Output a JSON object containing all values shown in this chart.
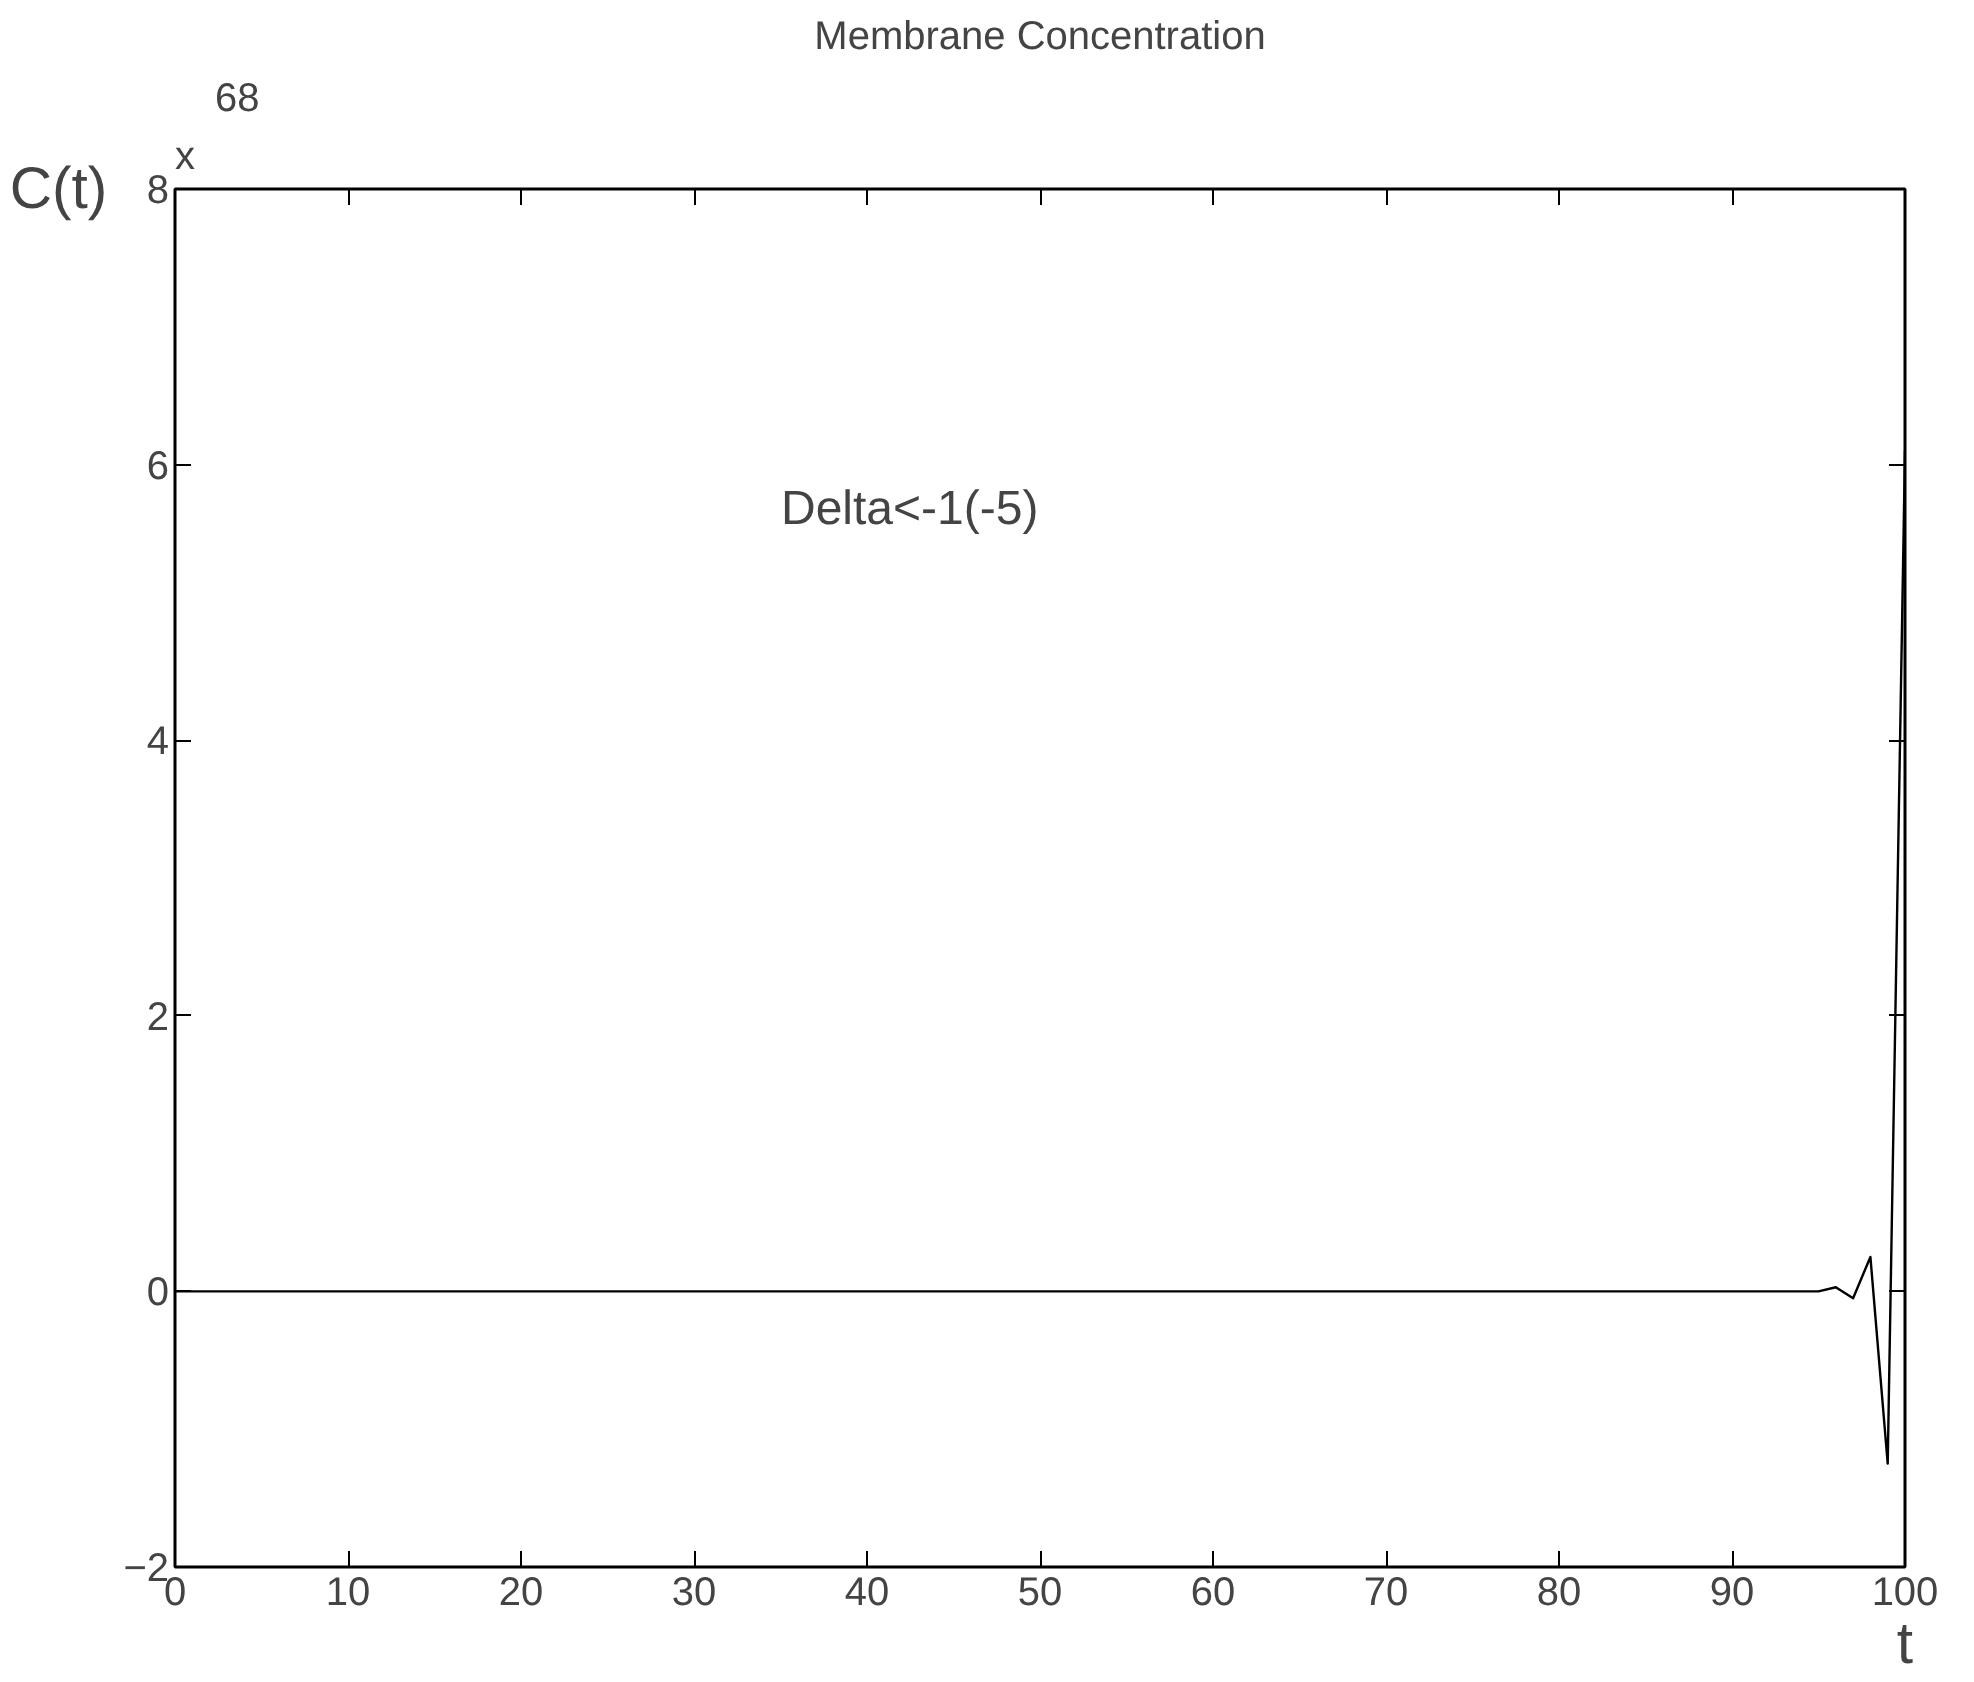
{
  "chart_data": {
    "type": "line",
    "title": "Membrane Concentration",
    "xlabel": "t",
    "ylabel": "C(t)",
    "x": [
      0,
      10,
      20,
      30,
      40,
      50,
      60,
      70,
      80,
      90,
      95,
      96,
      97,
      98,
      99,
      100
    ],
    "series": [
      {
        "color": "#000000",
        "values": [
          0,
          0,
          0,
          0,
          0,
          0,
          0,
          0,
          0,
          0,
          0,
          0.03,
          -0.05,
          0.25,
          -1.25,
          6.1
        ]
      }
    ],
    "xlim": [
      0,
      100
    ],
    "ylim": [
      -2,
      8
    ],
    "xticks": [
      0,
      10,
      20,
      30,
      40,
      50,
      60,
      70,
      80,
      90,
      100
    ],
    "yticks": [
      -2,
      0,
      2,
      4,
      6,
      8
    ],
    "annotations": [
      "x",
      "68",
      "Delta<-1(-5)"
    ],
    "grid": false,
    "marker": "none",
    "line_style": "solid"
  }
}
